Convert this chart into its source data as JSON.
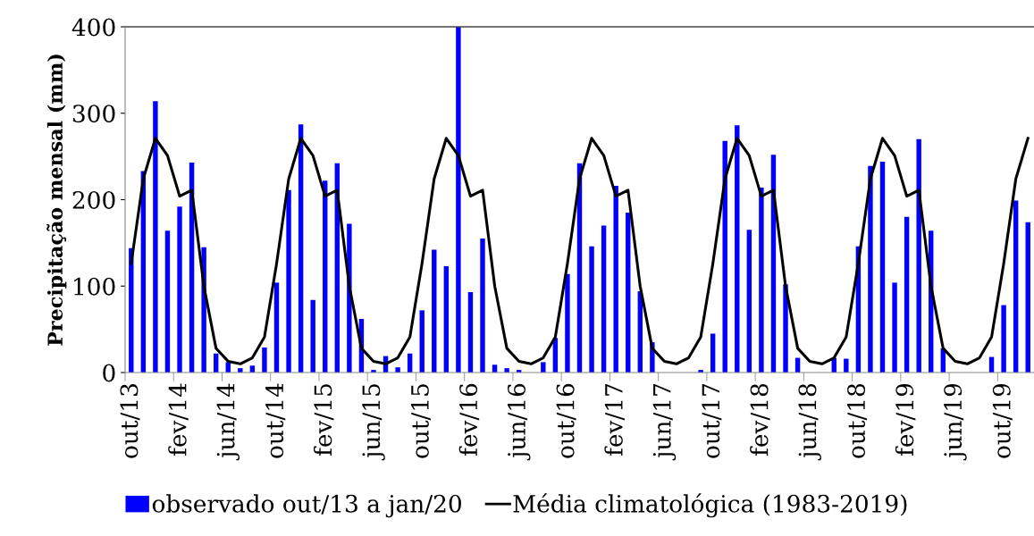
{
  "chart_data": {
    "type": "bar",
    "ylabel": "Precipitação mensal (mm)",
    "categories": [
      "out/13",
      null,
      null,
      null,
      "fev/14",
      null,
      null,
      null,
      "jun/14",
      null,
      null,
      null,
      "out/14",
      null,
      null,
      null,
      "fev/15",
      null,
      null,
      null,
      "jun/15",
      null,
      null,
      null,
      "out/15",
      null,
      null,
      null,
      "fev/16",
      null,
      null,
      null,
      "jun/16",
      null,
      null,
      null,
      "out/16",
      null,
      null,
      null,
      "fev/17",
      null,
      null,
      null,
      "jun/17",
      null,
      null,
      null,
      "out/17",
      null,
      null,
      null,
      "fev/18",
      null,
      null,
      null,
      "jun/18",
      null,
      null,
      null,
      "out/18",
      null,
      null,
      null,
      "fev/19",
      null,
      null,
      null,
      "jun/19",
      null,
      null,
      null,
      "out/19",
      null,
      null
    ],
    "series": [
      {
        "name": "observado out/13 a jan/20",
        "color": "#0000ff",
        "values": [
          144,
          233,
          314,
          164,
          192,
          243,
          145,
          22,
          12,
          5,
          8,
          29,
          104,
          211,
          287,
          84,
          222,
          242,
          172,
          62,
          3,
          19,
          6,
          22,
          72,
          142,
          123,
          400,
          93,
          155,
          9,
          5,
          3,
          0,
          12,
          40,
          114,
          242,
          146,
          170,
          216,
          185,
          94,
          35,
          0,
          0,
          0,
          3,
          45,
          268,
          286,
          165,
          214,
          252,
          102,
          17,
          0,
          0,
          17,
          16,
          146,
          239,
          244,
          104,
          180,
          270,
          164,
          28,
          0,
          0,
          0,
          18,
          78,
          199,
          174
        ]
      },
      {
        "name": "Média climatológica (1983-2019)",
        "type": "line",
        "color": "#000000",
        "values": [
          126,
          224,
          271,
          251,
          204,
          211,
          100,
          28,
          13,
          10,
          17,
          41,
          126,
          224,
          271,
          251,
          204,
          211,
          100,
          28,
          13,
          10,
          17,
          41,
          126,
          224,
          271,
          251,
          204,
          211,
          100,
          28,
          13,
          10,
          17,
          41,
          126,
          224,
          271,
          251,
          204,
          211,
          100,
          28,
          13,
          10,
          17,
          41,
          126,
          224,
          271,
          251,
          204,
          211,
          100,
          28,
          13,
          10,
          17,
          41,
          126,
          224,
          271,
          251,
          204,
          211,
          100,
          28,
          13,
          10,
          17,
          41,
          126,
          224,
          271
        ]
      }
    ],
    "ylim": [
      0,
      400
    ],
    "yticks": [
      0,
      100,
      200,
      300,
      400
    ],
    "grid": false,
    "legend": "bottom",
    "marker": "none",
    "line_style": "solid"
  }
}
